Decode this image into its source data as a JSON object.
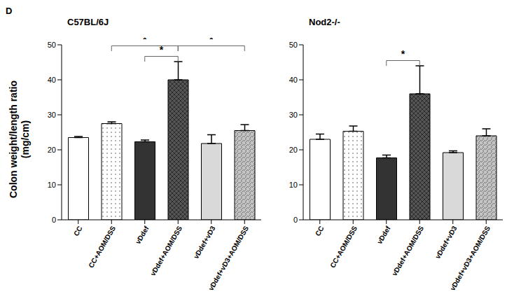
{
  "panel": "D",
  "chart_data": [
    {
      "type": "bar",
      "title": "C57BL/6J",
      "y_label": "Colon weight/length ratio\n(mg/cm)",
      "categories": [
        "CC",
        "CC+AOM/DSS",
        "vDdef",
        "vDdef+AOM/DSS",
        "vDdef+vD3",
        "vDdef+vD3+AOM/DSS"
      ],
      "values": [
        23.5,
        27.5,
        22.3,
        40,
        21.8,
        25.5
      ],
      "errors": [
        0.3,
        0.5,
        0.5,
        5.2,
        2.5,
        1.7
      ],
      "colors": [
        "#ffffff",
        "#ffffff",
        "#333333",
        "#555555",
        "#d9d9d9",
        "#c4c4c4"
      ],
      "ylim": [
        0,
        50
      ],
      "yticks": [
        0,
        10,
        20,
        30,
        40,
        50
      ],
      "significance": [
        {
          "from": 1,
          "to": 3,
          "label": "*"
        },
        {
          "from": 2,
          "to": 3,
          "label": "*"
        },
        {
          "from": 3,
          "to": 5,
          "label": "*"
        }
      ]
    },
    {
      "type": "bar",
      "title": "Nod2-/-",
      "categories": [
        "CC",
        "CC+AOM/DSS",
        "vDdef",
        "vDdef+AOM/DSS",
        "vDdef+vD3",
        "vDdef+vD3+AOM/DSS"
      ],
      "values": [
        23,
        25.3,
        17.7,
        36,
        19.2,
        24
      ],
      "errors": [
        1.5,
        1.5,
        0.8,
        8,
        0.5,
        2
      ],
      "colors": [
        "#ffffff",
        "#ffffff",
        "#333333",
        "#555555",
        "#d9d9d9",
        "#c4c4c4"
      ],
      "ylim": [
        0,
        50
      ],
      "yticks": [
        0,
        10,
        20,
        30,
        40,
        50
      ],
      "significance": [
        {
          "from": 2,
          "to": 3,
          "label": "*"
        }
      ]
    }
  ]
}
